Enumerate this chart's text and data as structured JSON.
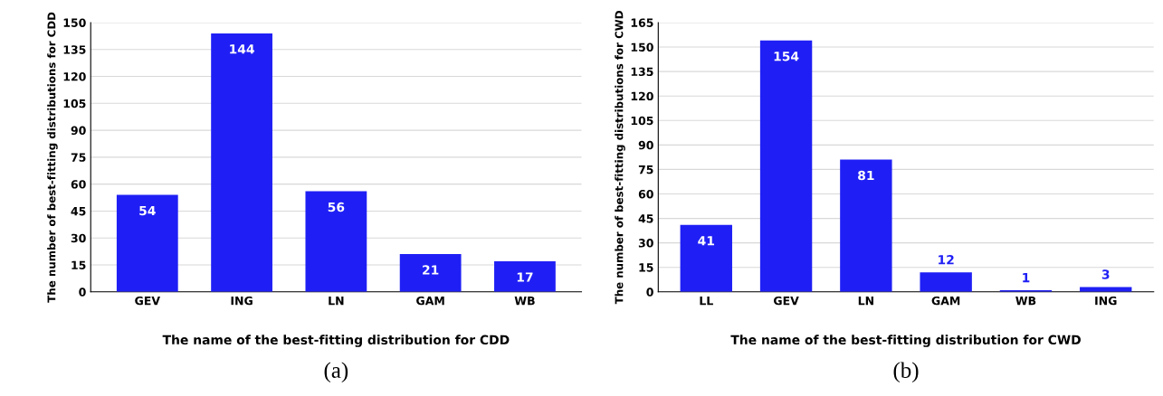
{
  "chart_data": [
    {
      "type": "bar",
      "categories": [
        "GEV",
        "ING",
        "LN",
        "GAM",
        "WB"
      ],
      "values": [
        54,
        144,
        56,
        21,
        17
      ],
      "color": "#1f1ff5",
      "ylim": [
        0,
        150
      ],
      "yticks": [
        0,
        15,
        30,
        45,
        60,
        75,
        90,
        105,
        120,
        135,
        150
      ],
      "grid": "y",
      "data_labels": true,
      "xlabel": "The name of the best-fitting distribution for CDD",
      "ylabel": "The number of best-fitting distributions for CDD",
      "annotations": [
        "(a)"
      ]
    },
    {
      "type": "bar",
      "categories": [
        "LL",
        "GEV",
        "LN",
        "GAM",
        "WB",
        "ING"
      ],
      "values": [
        41,
        154,
        81,
        12,
        1,
        3
      ],
      "color": "#1f1ff5",
      "ylim": [
        0,
        165
      ],
      "yticks": [
        0,
        15,
        30,
        45,
        60,
        75,
        90,
        105,
        120,
        135,
        150,
        165
      ],
      "grid": "y",
      "data_labels": true,
      "xlabel": "The name of the best-fitting distribution for CWD",
      "ylabel": "The number of best-fitting distributions for CWD",
      "annotations": [
        "(b)"
      ]
    }
  ]
}
